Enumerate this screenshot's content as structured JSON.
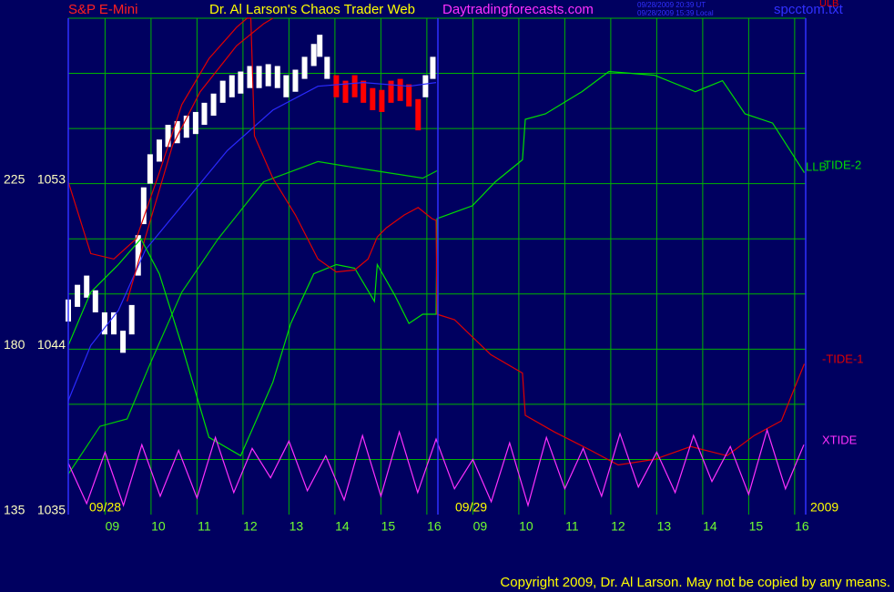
{
  "chart_data": {
    "type": "line",
    "symbol": "S&P E-Mini",
    "title": "Dr. Al Larson's Chaos Trader Web",
    "site": "Daytradingforecasts.com",
    "timestamps": [
      "09/28/2009 20:39 UT",
      "09/28/2009 15:39 Local"
    ],
    "file": "spcctom.txt",
    "date_labels": [
      "09/28",
      "09/29",
      "2009"
    ],
    "copyright": "Copyright 2009, Dr. Al Larson. May not be copied by any means.",
    "grid": true,
    "grid_color": "#00b400",
    "xlim": [
      8.2,
      24.24
    ],
    "xticks": [
      {
        "value": 9,
        "label": "09"
      },
      10,
      11,
      12,
      13,
      14,
      15,
      16,
      {
        "value": 17,
        "label": "09"
      },
      {
        "value": 18,
        "label": "10"
      },
      {
        "value": 19,
        "label": "11"
      },
      {
        "value": 20,
        "label": "12"
      },
      {
        "value": 21,
        "label": "13"
      },
      {
        "value": 22,
        "label": "14"
      },
      {
        "value": 23,
        "label": "15"
      },
      {
        "value": 24,
        "label": "16"
      }
    ],
    "ylim": [
      1035,
      1062
    ],
    "yticks": [
      1035,
      1044,
      1053
    ],
    "ygrid": [
      1038,
      1041,
      1044,
      1047,
      1050,
      1053,
      1056,
      1059,
      1062
    ],
    "y2lim": [
      135,
      270
    ],
    "y2ticks": [
      135,
      180,
      225
    ],
    "series": [
      {
        "style": "bars",
        "color": "#ffffff",
        "x": [
          8.2,
          8.4,
          8.6,
          8.79,
          8.99,
          9.19,
          9.39,
          9.58,
          9.72,
          9.84,
          9.98,
          10.18,
          10.37,
          10.57,
          10.77,
          10.97,
          11.16,
          11.36,
          11.56,
          11.76,
          11.95,
          12.15,
          12.35,
          12.55,
          12.75,
          12.94,
          13.14,
          13.34,
          13.54,
          13.67,
          13.83,
          15.97,
          16.13
        ],
        "low": [
          1045.5,
          1046.3,
          1046.8,
          1046.0,
          1044.8,
          1044.8,
          1043.8,
          1044.8,
          1048.0,
          1050.8,
          1053.0,
          1054.2,
          1055.0,
          1055.2,
          1055.5,
          1055.7,
          1056.2,
          1056.7,
          1057.4,
          1057.7,
          1057.9,
          1058.2,
          1058.2,
          1058.3,
          1058.2,
          1057.7,
          1058.0,
          1058.7,
          1059.4,
          1059.9,
          1058.7,
          1057.7,
          1058.7
        ],
        "high": [
          1046.7,
          1047.5,
          1048.0,
          1047.2,
          1046.0,
          1046.0,
          1045.0,
          1046.4,
          1050.2,
          1052.8,
          1054.6,
          1055.4,
          1056.2,
          1056.4,
          1056.7,
          1056.9,
          1057.4,
          1057.9,
          1058.6,
          1058.9,
          1059.1,
          1059.4,
          1059.4,
          1059.5,
          1059.4,
          1058.9,
          1059.2,
          1059.9,
          1060.6,
          1061.1,
          1059.9,
          1058.9,
          1059.9
        ]
      },
      {
        "style": "bars",
        "color": "#ff0000",
        "x": [
          14.03,
          14.23,
          14.43,
          14.62,
          14.82,
          15.02,
          15.22,
          15.42,
          15.61,
          15.81
        ],
        "low": [
          1057.7,
          1057.4,
          1057.7,
          1057.4,
          1057.0,
          1056.9,
          1057.4,
          1057.5,
          1057.2,
          1055.9
        ],
        "high": [
          1058.9,
          1058.6,
          1058.9,
          1058.6,
          1058.2,
          1058.1,
          1058.6,
          1058.7,
          1058.4,
          1057.6
        ]
      },
      {
        "style": "line",
        "color": "#2a2aff",
        "x": [
          8.2,
          8.69,
          9.29,
          9.88,
          10.67,
          11.66,
          12.65,
          13.63,
          14.62,
          15.61,
          16.2
        ],
        "values": [
          1041.2,
          1044.2,
          1046.1,
          1049.4,
          1051.8,
          1054.8,
          1057.0,
          1058.3,
          1058.5,
          1058.3,
          1058.5
        ]
      },
      {
        "name": "ULB",
        "style": "line",
        "color": "#e00000",
        "x": [
          9.48,
          9.88,
          10.47,
          11.07,
          11.86,
          12.45,
          12.65
        ],
        "values": [
          1046.6,
          1050.1,
          1055.1,
          1058.0,
          1060.5,
          1061.7,
          1062.0
        ]
      },
      {
        "name": "LLB",
        "style": "line",
        "color": "#00d000",
        "x": [
          8.2,
          8.89,
          9.48,
          9.98,
          10.67,
          11.46,
          12.45,
          13.63,
          14.62,
          15.41,
          15.91,
          16.22
        ],
        "values": [
          1037.2,
          1039.8,
          1040.2,
          1043.2,
          1047.1,
          1050.0,
          1053.1,
          1054.2,
          1053.8,
          1053.5,
          1053.3,
          1053.7
        ]
      },
      {
        "name": "TIDE-2",
        "style": "line",
        "color": "#00e000",
        "x": [
          8.2,
          8.69,
          9.29,
          9.78,
          10.18,
          10.67,
          11.26,
          11.95,
          12.65,
          13.04,
          13.54,
          14.03,
          14.43,
          14.86,
          14.92,
          15.31,
          15.61,
          15.91,
          16.2,
          16.22,
          16.99,
          17.49,
          18.08,
          18.14,
          18.58,
          19.37,
          19.96,
          20.95,
          21.84,
          22.43,
          22.92,
          23.52,
          24.21
        ],
        "values": [
          1044.2,
          1047.1,
          1048.6,
          1050.0,
          1048.1,
          1044.2,
          1039.2,
          1038.2,
          1042.2,
          1045.4,
          1048.1,
          1048.6,
          1048.4,
          1046.6,
          1048.6,
          1046.9,
          1045.4,
          1045.9,
          1045.9,
          1051.1,
          1051.8,
          1053.1,
          1054.3,
          1056.5,
          1056.8,
          1058.0,
          1059.1,
          1058.9,
          1058.0,
          1058.6,
          1056.8,
          1056.3,
          1053.6
        ]
      },
      {
        "name": "-TIDE-1",
        "style": "line",
        "color": "#e00000",
        "x": [
          8.2,
          8.69,
          9.19,
          9.68,
          10.18,
          10.67,
          11.26,
          11.86,
          12.09,
          12.17,
          12.25,
          12.65,
          13.14,
          13.63,
          14.03,
          14.43,
          14.72,
          14.92,
          15.12,
          15.51,
          15.81,
          16.11,
          16.2,
          16.22,
          16.6,
          17.39,
          18.08,
          18.14,
          18.77,
          19.56,
          20.16,
          20.95,
          21.74,
          22.53,
          23.12,
          23.71,
          24.21
        ],
        "values": [
          1053.1,
          1049.2,
          1048.9,
          1050.0,
          1053.6,
          1057.3,
          1059.8,
          1061.5,
          1062.0,
          1062.0,
          1055.6,
          1053.3,
          1051.3,
          1048.9,
          1048.2,
          1048.3,
          1048.9,
          1050.1,
          1050.6,
          1051.3,
          1051.7,
          1051.1,
          1051.0,
          1045.9,
          1045.6,
          1043.7,
          1042.7,
          1040.4,
          1039.5,
          1038.5,
          1037.7,
          1038.0,
          1038.7,
          1038.2,
          1039.3,
          1040.1,
          1043.2
        ]
      },
      {
        "name": "XTIDE",
        "style": "line",
        "color": "#ff30ff",
        "x": [
          8.2,
          8.6,
          9.0,
          9.4,
          9.8,
          10.2,
          10.6,
          11.0,
          11.4,
          11.8,
          12.2,
          12.6,
          13.0,
          13.4,
          13.8,
          14.2,
          14.6,
          15.0,
          15.4,
          15.8,
          16.2,
          16.6,
          17.0,
          17.4,
          17.8,
          18.2,
          18.6,
          19.0,
          19.4,
          19.8,
          20.2,
          20.6,
          21.0,
          21.4,
          21.8,
          22.2,
          22.6,
          23.0,
          23.4,
          23.8,
          24.2
        ],
        "values": [
          1037.8,
          1035.6,
          1038.4,
          1035.5,
          1038.8,
          1036.0,
          1038.5,
          1035.9,
          1039.2,
          1036.2,
          1038.6,
          1037.0,
          1039.0,
          1036.3,
          1038.2,
          1035.8,
          1039.3,
          1036.0,
          1039.5,
          1036.2,
          1039.1,
          1036.4,
          1038.0,
          1035.7,
          1038.9,
          1035.5,
          1039.2,
          1036.4,
          1038.6,
          1036.0,
          1039.4,
          1036.5,
          1038.4,
          1036.2,
          1039.3,
          1036.8,
          1038.7,
          1036.1,
          1039.6,
          1036.4,
          1038.8
        ]
      }
    ]
  }
}
